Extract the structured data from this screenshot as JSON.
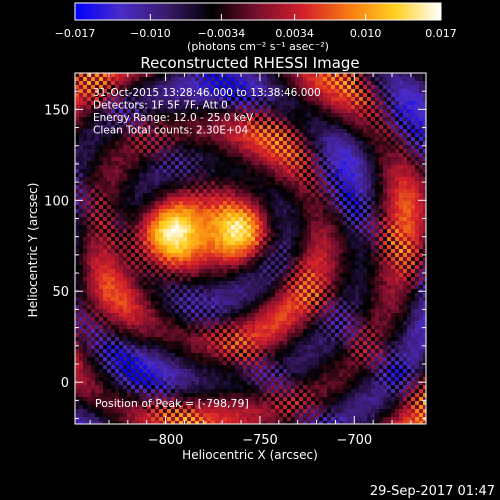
{
  "colorbar": {
    "tick_labels": [
      "−0.017",
      "−0.010",
      "−0.0034",
      "0.0034",
      "0.010",
      "0.017"
    ],
    "tick_values": [
      -0.017,
      -0.01,
      -0.0034,
      0.0034,
      0.01,
      0.017
    ],
    "range": [
      -0.017,
      0.017
    ],
    "units_label": "(photons cm⁻² s⁻¹ asec⁻²)",
    "colormap": [
      "#0000ff",
      "#4a2cc8",
      "#3a1a6a",
      "#000000",
      "#7a0f2e",
      "#d4202a",
      "#f77b10",
      "#ffd020",
      "#ffffff"
    ]
  },
  "chart_data": {
    "type": "heatmap",
    "title": "Reconstructed RHESSI Image",
    "xlabel": "Heliocentric X (arcsec)",
    "ylabel": "Heliocentric Y (arcsec)",
    "xlim": [
      -848,
      -662
    ],
    "ylim": [
      -23,
      170
    ],
    "x_ticks": [
      -800,
      -750,
      -700
    ],
    "x_tick_labels": [
      "−800",
      "−750",
      "−700"
    ],
    "y_ticks": [
      0,
      50,
      100,
      150
    ],
    "y_tick_labels": [
      "0",
      "50",
      "100",
      "150"
    ],
    "annotations": [
      "31-Oct-2015 13:28:46.000 to 13:38:46.000",
      "Detectors: 1F 5F 7F, Att 0",
      "Energy Range: 12.0 - 25.0 keV",
      "Clean     Total counts: 2.30E+04"
    ],
    "peak_label": "Position of Peak = [-798,79]",
    "peak": [
      -798,
      79
    ],
    "sources": [
      {
        "x": -796,
        "y": 82,
        "amplitude": 0.017,
        "sigma_x": 14,
        "sigma_y": 13
      },
      {
        "x": -760,
        "y": 83,
        "amplitude": 0.0165,
        "sigma_x": 12,
        "sigma_y": 12
      }
    ]
  },
  "timestamp": "29-Sep-2017 01:47"
}
